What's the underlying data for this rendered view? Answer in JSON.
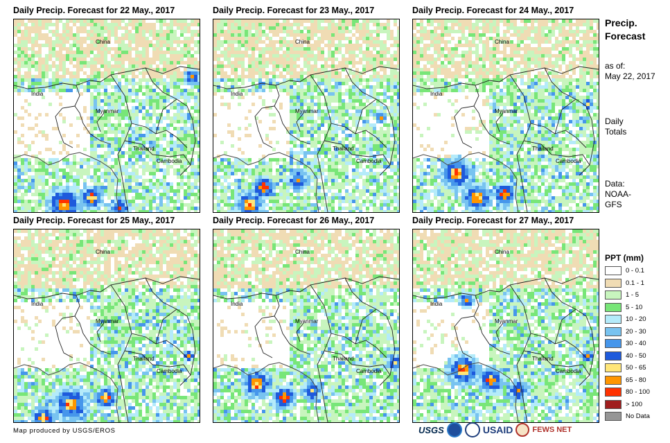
{
  "panels": [
    {
      "title": "Daily Precip. Forecast for 22 May., 2017",
      "date": "2017-05-22"
    },
    {
      "title": "Daily Precip. Forecast for 23 May., 2017",
      "date": "2017-05-23"
    },
    {
      "title": "Daily Precip. Forecast for 24 May., 2017",
      "date": "2017-05-24"
    },
    {
      "title": "Daily Precip. Forecast for 25 May., 2017",
      "date": "2017-05-25"
    },
    {
      "title": "Daily Precip. Forecast for 26 May., 2017",
      "date": "2017-05-26"
    },
    {
      "title": "Daily Precip. Forecast for 27 May., 2017",
      "date": "2017-05-27"
    }
  ],
  "map_labels": {
    "china": "China",
    "india": "India",
    "myanmar": "Myanmar",
    "thailand": "Thailand",
    "cambodia": "Cambodia"
  },
  "side": {
    "title_line1": "Precip.",
    "title_line2": "Forecast",
    "asof_label": "as of:",
    "asof_date": "May 22, 2017",
    "totals_line1": "Daily",
    "totals_line2": "Totals",
    "data_line1": "Data:",
    "data_line2": "NOAA-",
    "data_line3": "GFS"
  },
  "legend": {
    "title": "PPT (mm)",
    "items": [
      {
        "label": "0 - 0.1",
        "color": "#ffffff"
      },
      {
        "label": "0.1 - 1",
        "color": "#f0dcb4"
      },
      {
        "label": "1 - 5",
        "color": "#c8f5be"
      },
      {
        "label": "5 - 10",
        "color": "#78e678"
      },
      {
        "label": "10 - 20",
        "color": "#b4ebfa"
      },
      {
        "label": "20 - 30",
        "color": "#78c3f0"
      },
      {
        "label": "30 - 40",
        "color": "#4696eb"
      },
      {
        "label": "40 - 50",
        "color": "#1e5adc"
      },
      {
        "label": "50 - 65",
        "color": "#ffe678"
      },
      {
        "label": "65 - 80",
        "color": "#ff9600"
      },
      {
        "label": "80 - 100",
        "color": "#ff3200"
      },
      {
        "label": "> 100",
        "color": "#a01e1e"
      },
      {
        "label": "No Data",
        "color": "#969696"
      }
    ]
  },
  "footer": {
    "credit": "Map produced by USGS/EROS"
  },
  "logos": {
    "usgs": "USGS",
    "usaid": "USAID",
    "fews": "FEWS NET"
  }
}
